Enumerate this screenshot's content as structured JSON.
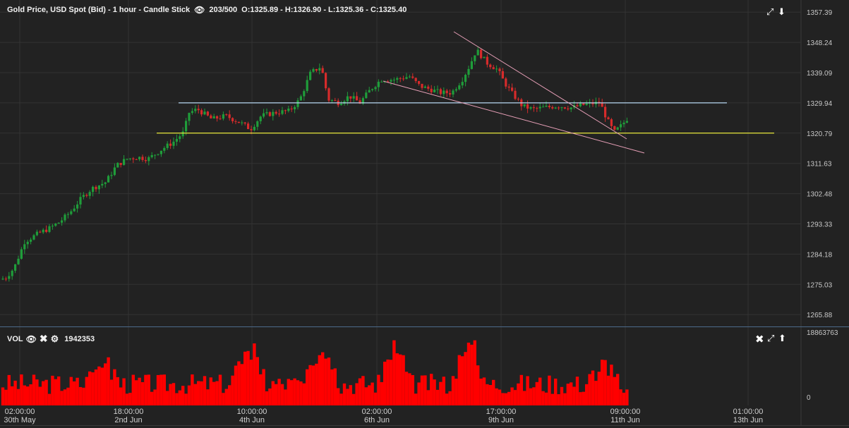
{
  "header": {
    "title": "Gold Price, USD Spot (Bid) - 1 hour - Candle Stick",
    "count": "203/500",
    "ohlc": "O:1325.89 - H:1326.90 - L:1325.36 - C:1325.40"
  },
  "volume_header": {
    "label": "VOL",
    "value": "1942353"
  },
  "colors": {
    "up": "#1f9d3a",
    "down": "#d62b2b",
    "volume": "#ff0000",
    "support": "#e8e83a",
    "resistance": "#b7d6f2",
    "trendline": "#e8a0b8",
    "background": "#222222",
    "grid": "#333333"
  },
  "chart_data": [
    {
      "type": "candlestick",
      "title": "Gold Price, USD Spot (Bid) - 1 hour - Candle Stick",
      "y_ticks": [
        "1357.39",
        "1348.24",
        "1339.09",
        "1329.94",
        "1320.79",
        "1311.63",
        "1302.48",
        "1293.33",
        "1284.18",
        "1275.03",
        "1265.88"
      ],
      "ylim": [
        1262.5,
        1358.5
      ],
      "x_ticks": [
        {
          "time": "02:00:00",
          "date": "30th May"
        },
        {
          "time": "18:00:00",
          "date": "2nd Jun"
        },
        {
          "time": "10:00:00",
          "date": "4th Jun"
        },
        {
          "time": "02:00:00",
          "date": "6th Jun"
        },
        {
          "time": "17:00:00",
          "date": "9th Jun"
        },
        {
          "time": "09:00:00",
          "date": "11th Jun"
        },
        {
          "time": "01:00:00",
          "date": "13th Jun"
        }
      ],
      "price_path": [
        [
          0,
          1276.5
        ],
        [
          8,
          1277
        ],
        [
          20,
          1280
        ],
        [
          35,
          1288
        ],
        [
          55,
          1290.5
        ],
        [
          70,
          1292
        ],
        [
          85,
          1294
        ],
        [
          100,
          1297
        ],
        [
          115,
          1301
        ],
        [
          130,
          1304
        ],
        [
          150,
          1306
        ],
        [
          165,
          1311
        ],
        [
          180,
          1313
        ],
        [
          195,
          1313.5
        ],
        [
          210,
          1313
        ],
        [
          230,
          1316
        ],
        [
          245,
          1318
        ],
        [
          260,
          1321
        ],
        [
          268,
          1327
        ],
        [
          280,
          1328
        ],
        [
          300,
          1325
        ],
        [
          320,
          1326
        ],
        [
          340,
          1324
        ],
        [
          355,
          1322
        ],
        [
          370,
          1326
        ],
        [
          390,
          1327
        ],
        [
          410,
          1327.5
        ],
        [
          425,
          1331
        ],
        [
          440,
          1339
        ],
        [
          455,
          1341
        ],
        [
          465,
          1331
        ],
        [
          480,
          1330
        ],
        [
          495,
          1332
        ],
        [
          510,
          1330
        ],
        [
          525,
          1334
        ],
        [
          540,
          1337
        ],
        [
          560,
          1337
        ],
        [
          580,
          1338
        ],
        [
          595,
          1335
        ],
        [
          610,
          1334
        ],
        [
          625,
          1333
        ],
        [
          640,
          1333
        ],
        [
          655,
          1337
        ],
        [
          665,
          1341
        ],
        [
          675,
          1346
        ],
        [
          690,
          1342
        ],
        [
          705,
          1340
        ],
        [
          715,
          1336
        ],
        [
          725,
          1333
        ],
        [
          740,
          1329
        ],
        [
          755,
          1328
        ],
        [
          770,
          1328.5
        ],
        [
          790,
          1329
        ],
        [
          810,
          1328.5
        ],
        [
          830,
          1329.5
        ],
        [
          850,
          1330
        ],
        [
          860,
          1325
        ],
        [
          870,
          1321
        ],
        [
          880,
          1323
        ],
        [
          892,
          1326
        ]
      ],
      "support_level": 1320.79,
      "resistance_level": 1329.94
    },
    {
      "type": "bar",
      "title": "VOL",
      "y_ticks": [
        "18863763",
        "0"
      ],
      "ylim": [
        0,
        18863763
      ]
    }
  ]
}
